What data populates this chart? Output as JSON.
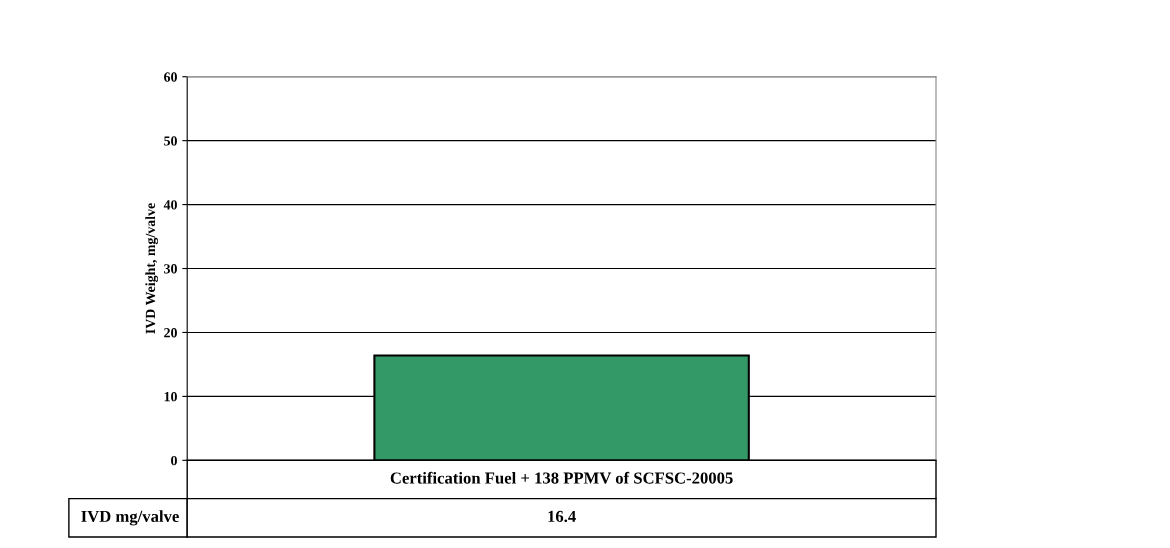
{
  "chart_data": {
    "type": "bar",
    "ylabel": "IVD Weight, mg/valve",
    "categories": [
      "Certification Fuel + 138 PPMV of SCFSC-20005"
    ],
    "series": [
      {
        "name": "IVD mg/valve",
        "color": "#339966",
        "values": [
          16.4
        ]
      }
    ],
    "ylim": [
      0,
      60
    ],
    "yticks": [
      0,
      10,
      20,
      30,
      40,
      50,
      60
    ],
    "grid": "y",
    "data_labels": true,
    "legend": false
  }
}
